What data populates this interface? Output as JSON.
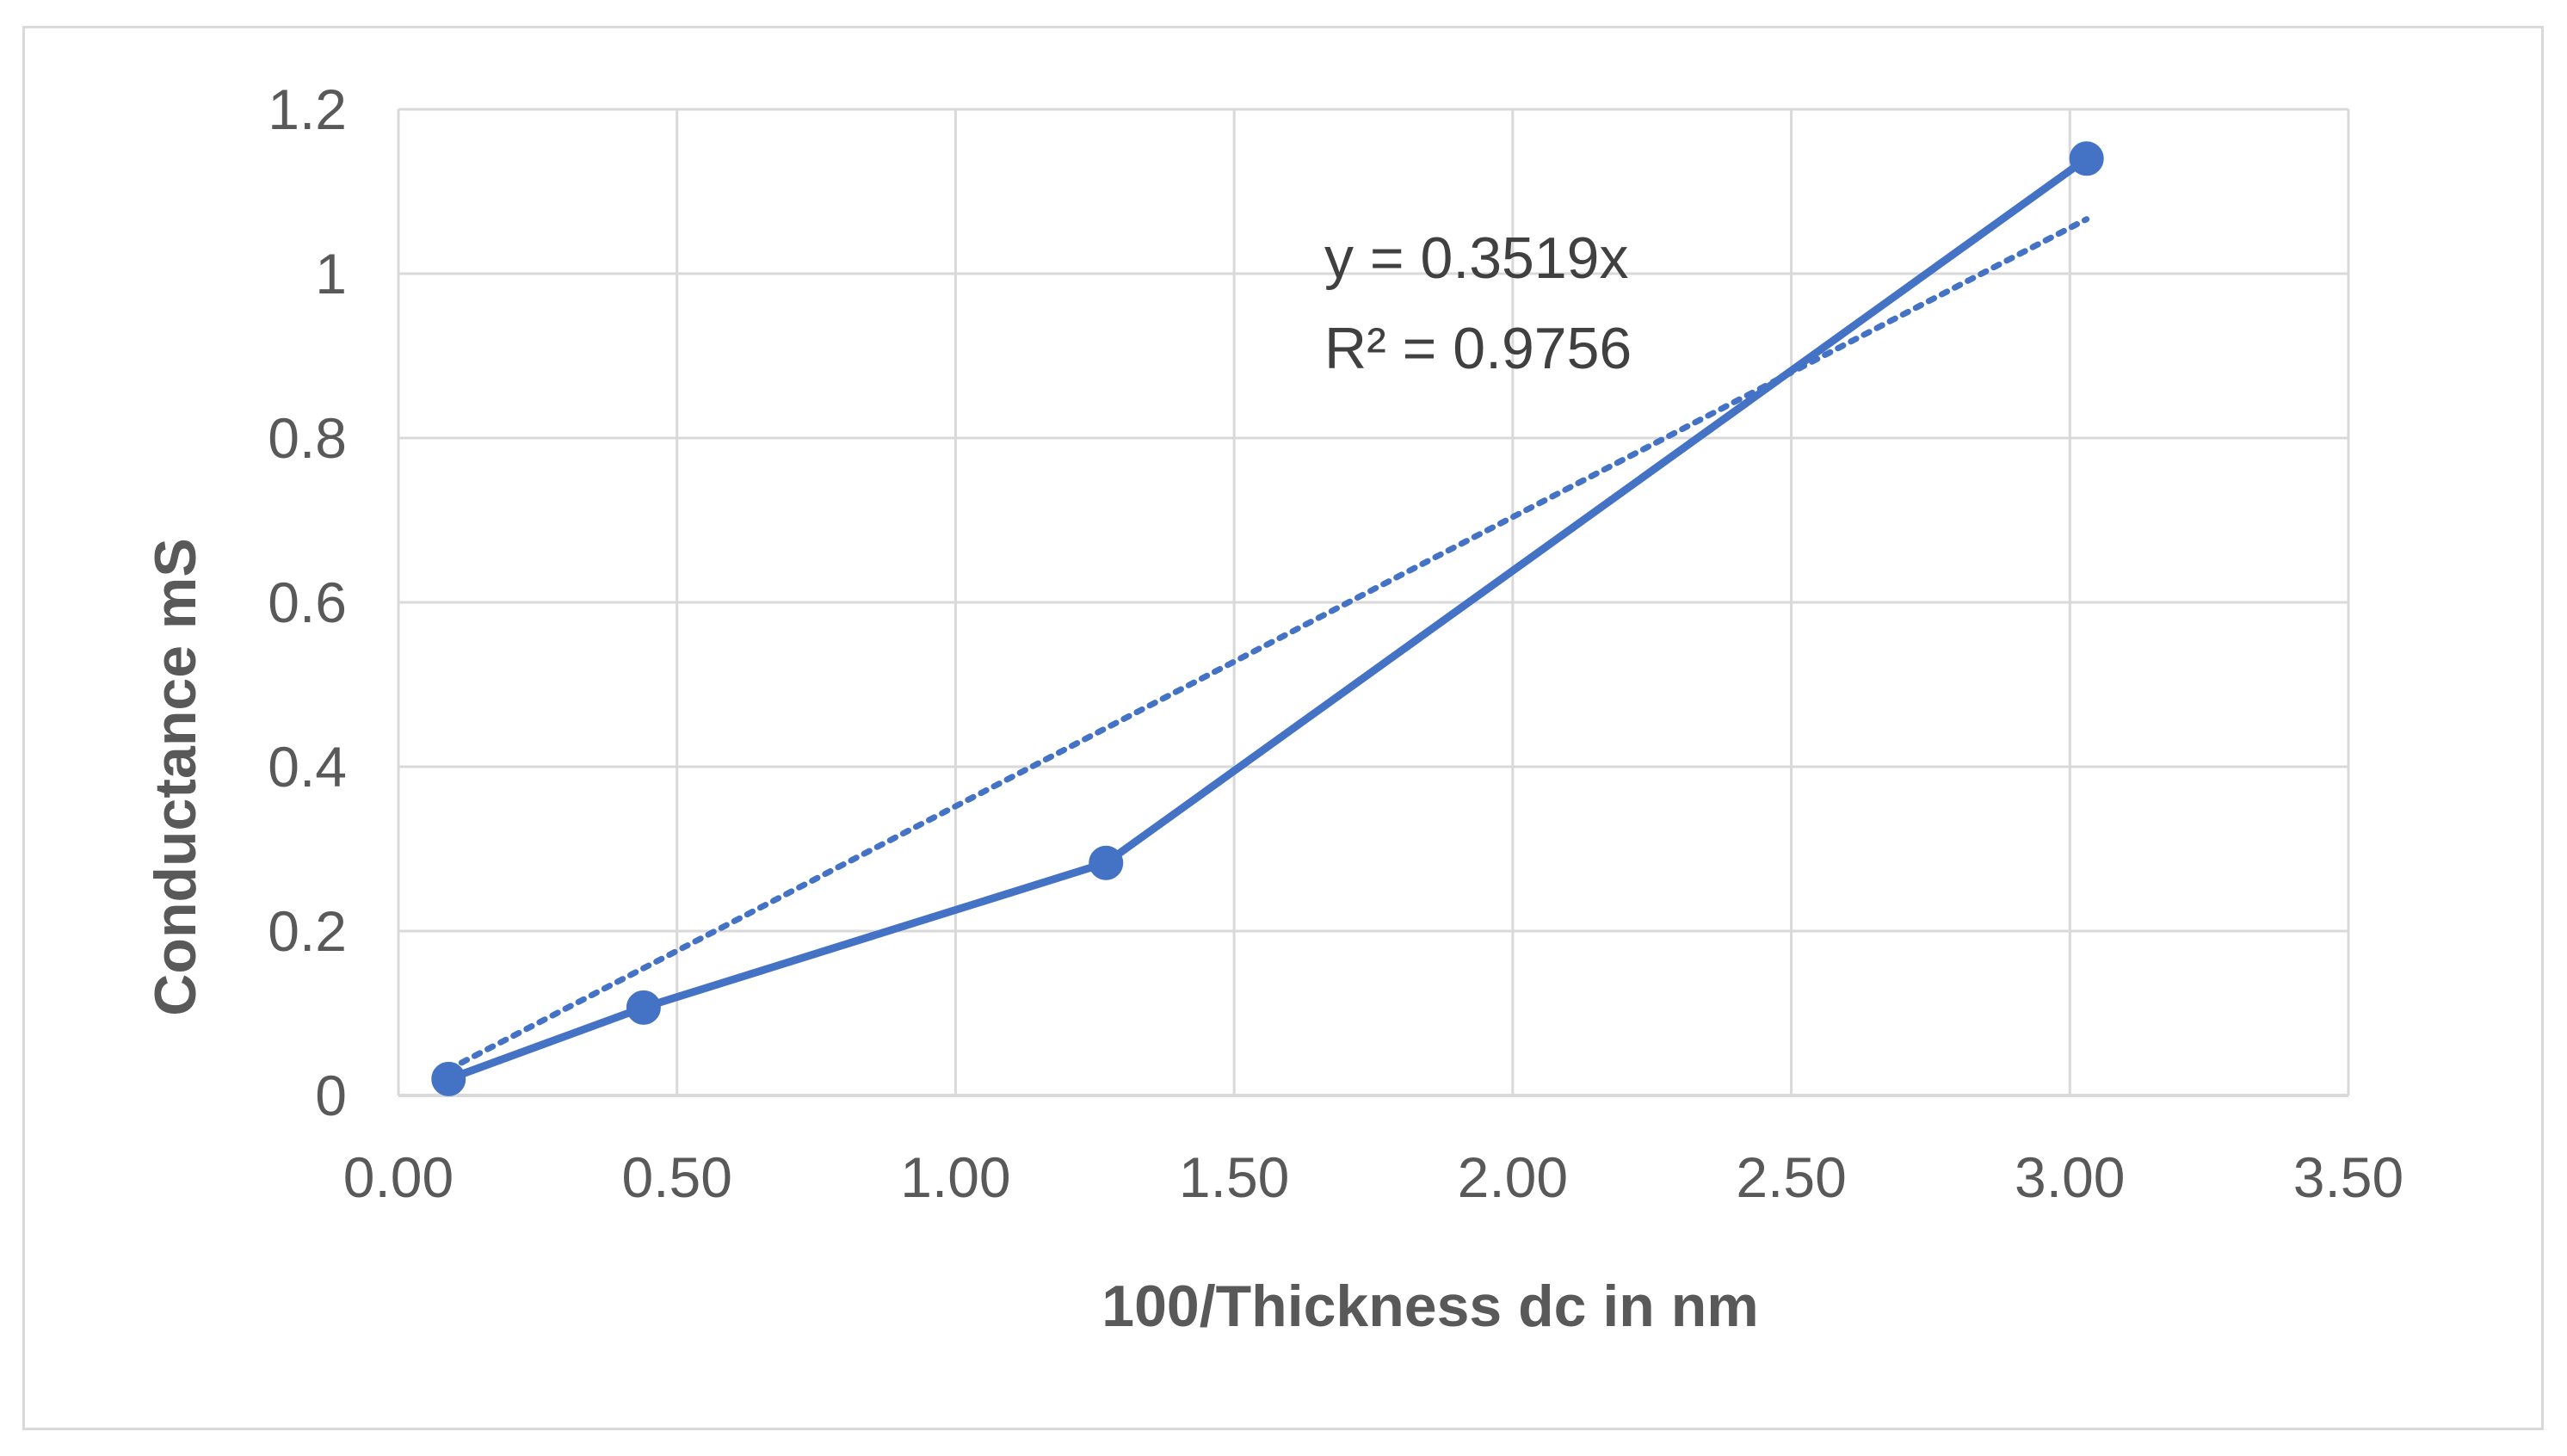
{
  "chart_data": {
    "type": "scatter",
    "title": "",
    "xlabel": "100/Thickness dc in nm",
    "ylabel": "Conductance mS",
    "xlim": [
      0,
      3.5
    ],
    "ylim": [
      0,
      1.2
    ],
    "x_ticks": [
      0,
      0.5,
      1,
      1.5,
      2,
      2.5,
      3,
      3.5
    ],
    "x_tick_labels": [
      "0.00",
      "0.50",
      "1.00",
      "1.50",
      "2.00",
      "2.50",
      "3.00",
      "3.50"
    ],
    "y_ticks": [
      0,
      0.2,
      0.4,
      0.6,
      0.8,
      1,
      1.2
    ],
    "y_tick_labels": [
      "0",
      "0.2",
      "0.4",
      "0.6",
      "0.8",
      "1",
      "1.2"
    ],
    "grid": true,
    "series": [
      {
        "name": "Conductance",
        "x": [
          0.09,
          0.44,
          1.27,
          3.03
        ],
        "y": [
          0.02,
          0.107,
          0.283,
          1.14
        ],
        "color": "#4472c4",
        "style": "line-with-markers"
      }
    ],
    "trendline": {
      "type": "linear",
      "slope": 0.3519,
      "x_range": [
        0.09,
        3.03
      ],
      "color": "#4472c4",
      "style": "dotted",
      "equation": "y = 0.3519x",
      "r_squared": "R² = 0.9756"
    }
  },
  "colors": {
    "series": "#4472c4",
    "grid": "#d9d9d9",
    "text": "#595959",
    "border": "#d9d9d9"
  }
}
